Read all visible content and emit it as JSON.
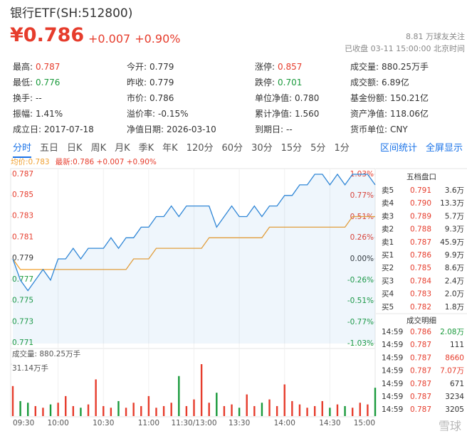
{
  "header": {
    "title": "银行ETF(SH:512800)",
    "price": "¥0.786",
    "change": "+0.007",
    "change_pct": "+0.90%",
    "followers": "8.81 万球友关注",
    "status": "已收盘 03-11 15:00:00 北京时间"
  },
  "stats": [
    [
      {
        "label": "最高:",
        "value": "0.787",
        "color": "#e63c2c"
      },
      {
        "label": "今开:",
        "value": "0.779",
        "color": "#333"
      },
      {
        "label": "涨停:",
        "value": "0.857",
        "color": "#e63c2c"
      },
      {
        "label": "成交量:",
        "value": "880.25万手",
        "color": "#333"
      }
    ],
    [
      {
        "label": "最低:",
        "value": "0.776",
        "color": "#1a9a3c"
      },
      {
        "label": "昨收:",
        "value": "0.779",
        "color": "#333"
      },
      {
        "label": "跌停:",
        "value": "0.701",
        "color": "#1a9a3c"
      },
      {
        "label": "成交额:",
        "value": "6.89亿",
        "color": "#333"
      }
    ],
    [
      {
        "label": "换手:",
        "value": "--",
        "color": "#333"
      },
      {
        "label": "市价:",
        "value": "0.786",
        "color": "#333"
      },
      {
        "label": "单位净值:",
        "value": "0.780",
        "color": "#333"
      },
      {
        "label": "基金份额:",
        "value": "150.21亿",
        "color": "#333"
      }
    ],
    [
      {
        "label": "振幅:",
        "value": "1.41%",
        "color": "#333"
      },
      {
        "label": "溢价率:",
        "value": "-0.15%",
        "color": "#333"
      },
      {
        "label": "累计净值:",
        "value": "1.560",
        "color": "#333"
      },
      {
        "label": "资产净值:",
        "value": "118.06亿",
        "color": "#333"
      }
    ],
    [
      {
        "label": "成立日:",
        "value": "2017-07-18",
        "color": "#333"
      },
      {
        "label": "净值日期:",
        "value": "2026-03-10",
        "color": "#333"
      },
      {
        "label": "到期日:",
        "value": "--",
        "color": "#333"
      },
      {
        "label": "货币单位:",
        "value": "CNY",
        "color": "#333"
      }
    ]
  ],
  "tabs": {
    "items": [
      "分时",
      "五日",
      "日K",
      "周K",
      "月K",
      "季K",
      "年K",
      "120分",
      "60分",
      "30分",
      "15分",
      "5分",
      "1分"
    ],
    "active": 0,
    "links": [
      "区间统计",
      "全屏显示"
    ]
  },
  "chart_data": [
    {
      "type": "line",
      "base": 0.779,
      "x": [
        0,
        5,
        10,
        15,
        20,
        25,
        30,
        35,
        40,
        45,
        50,
        55,
        60,
        65,
        70,
        75,
        80,
        85,
        90,
        95,
        100,
        105,
        110,
        115,
        120,
        125,
        130,
        135,
        140,
        145,
        150,
        155,
        160,
        165,
        170,
        175,
        180,
        185,
        190,
        195,
        200,
        205,
        210,
        215,
        220,
        225,
        230,
        235,
        240
      ],
      "series": [
        {
          "name": "均价:0.783",
          "color": "#f0a030",
          "legend_color": "#f0a030",
          "values": [
            0.779,
            0.778,
            0.778,
            0.778,
            0.778,
            0.778,
            0.778,
            0.778,
            0.778,
            0.778,
            0.778,
            0.778,
            0.778,
            0.778,
            0.778,
            0.778,
            0.779,
            0.779,
            0.779,
            0.78,
            0.78,
            0.78,
            0.78,
            0.78,
            0.78,
            0.78,
            0.781,
            0.781,
            0.781,
            0.781,
            0.781,
            0.781,
            0.781,
            0.781,
            0.782,
            0.782,
            0.782,
            0.782,
            0.782,
            0.782,
            0.782,
            0.782,
            0.782,
            0.782,
            0.782,
            0.783,
            0.783,
            0.783,
            0.783
          ]
        },
        {
          "name": "最新:0.786 +0.007 +0.90%",
          "color": "#2f86d6",
          "legend_color": "#e63c2c",
          "area": true,
          "values": [
            0.779,
            0.777,
            0.776,
            0.777,
            0.778,
            0.777,
            0.779,
            0.779,
            0.78,
            0.779,
            0.78,
            0.78,
            0.78,
            0.781,
            0.78,
            0.781,
            0.781,
            0.782,
            0.782,
            0.783,
            0.783,
            0.784,
            0.783,
            0.784,
            0.784,
            0.784,
            0.784,
            0.782,
            0.783,
            0.784,
            0.783,
            0.783,
            0.784,
            0.783,
            0.784,
            0.784,
            0.785,
            0.785,
            0.786,
            0.786,
            0.787,
            0.787,
            0.786,
            0.787,
            0.786,
            0.787,
            0.787,
            0.787,
            0.786
          ]
        }
      ],
      "xlim": [
        0,
        240
      ],
      "ylim": [
        0.771,
        0.787
      ],
      "yticks": [
        0.787,
        0.785,
        0.783,
        0.781,
        0.779,
        0.777,
        0.775,
        0.773,
        0.771
      ],
      "y2lim": [
        -1.03,
        1.03
      ],
      "y2ticks": [
        {
          "value": 1.03,
          "label": "1.03%"
        },
        {
          "value": 0.77,
          "label": "0.77%"
        },
        {
          "value": 0.51,
          "label": "0.51%"
        },
        {
          "value": 0.26,
          "label": "0.26%"
        },
        {
          "value": 0,
          "label": "0.00%"
        },
        {
          "value": -0.26,
          "label": "-0.26%"
        },
        {
          "value": -0.51,
          "label": "-0.51%"
        },
        {
          "value": -0.77,
          "label": "-0.77%"
        },
        {
          "value": -1.03,
          "label": "-1.03%"
        }
      ],
      "up_color": "#e63c2c",
      "down_color": "#1a9a3c",
      "flat_color": "#333333"
    },
    {
      "type": "bar",
      "title": "成交量: 880.25万手",
      "x": [
        0,
        5,
        10,
        15,
        20,
        25,
        30,
        35,
        40,
        45,
        50,
        55,
        60,
        65,
        70,
        75,
        80,
        85,
        90,
        95,
        100,
        105,
        110,
        115,
        120,
        125,
        130,
        135,
        140,
        145,
        150,
        155,
        160,
        165,
        170,
        175,
        180,
        185,
        190,
        195,
        200,
        205,
        210,
        215,
        220,
        225,
        230,
        235,
        240
      ],
      "values": [
        18,
        9,
        8,
        6,
        5,
        7,
        8,
        12,
        6,
        5,
        7,
        22,
        6,
        5,
        9,
        5,
        8,
        6,
        12,
        5,
        6,
        8,
        24,
        6,
        10,
        31.14,
        8,
        14,
        6,
        7,
        5,
        13,
        6,
        8,
        10,
        6,
        19,
        9,
        7,
        5,
        6,
        9,
        5,
        7,
        6,
        5,
        8,
        7,
        17
      ],
      "xlim": [
        0,
        240
      ],
      "ylim": [
        0,
        31.14
      ],
      "yticks": [
        {
          "value": 31.14,
          "label": "31.14万手"
        }
      ],
      "xticks": [
        {
          "value": 0,
          "label": "09:30"
        },
        {
          "value": 30,
          "label": "10:00"
        },
        {
          "value": 60,
          "label": "10:30"
        },
        {
          "value": 90,
          "label": "11:00"
        },
        {
          "value": 120,
          "label": "11:30/13:00"
        },
        {
          "value": 150,
          "label": "13:30"
        },
        {
          "value": 180,
          "label": "14:00"
        },
        {
          "value": 210,
          "label": "14:30"
        },
        {
          "value": 240,
          "label": "15:00"
        }
      ],
      "grid": true,
      "up_color": "#e63c2c",
      "down_color": "#1a9a3c"
    }
  ],
  "order_book": {
    "title": "五档盘口",
    "rows": [
      {
        "label": "卖5",
        "price": "0.791",
        "volume": "3.6万"
      },
      {
        "label": "卖4",
        "price": "0.790",
        "volume": "13.3万"
      },
      {
        "label": "卖3",
        "price": "0.789",
        "volume": "5.7万"
      },
      {
        "label": "卖2",
        "price": "0.788",
        "volume": "9.3万"
      },
      {
        "label": "卖1",
        "price": "0.787",
        "volume": "45.9万"
      },
      {
        "label": "买1",
        "price": "0.786",
        "volume": "9.9万"
      },
      {
        "label": "买2",
        "price": "0.785",
        "volume": "8.6万"
      },
      {
        "label": "买3",
        "price": "0.784",
        "volume": "2.4万"
      },
      {
        "label": "买4",
        "price": "0.783",
        "volume": "2.0万"
      },
      {
        "label": "买5",
        "price": "0.782",
        "volume": "1.8万"
      }
    ]
  },
  "trades": {
    "title": "成交明细",
    "rows": [
      {
        "time": "14:59",
        "price": "0.786",
        "volume": "2.08万",
        "color": "#1a9a3c"
      },
      {
        "time": "14:59",
        "price": "0.787",
        "volume": "111",
        "color": "#333"
      },
      {
        "time": "14:59",
        "price": "0.787",
        "volume": "8660",
        "color": "#e63c2c"
      },
      {
        "time": "14:59",
        "price": "0.787",
        "volume": "7.07万",
        "color": "#e63c2c"
      },
      {
        "time": "14:59",
        "price": "0.787",
        "volume": "671",
        "color": "#333"
      },
      {
        "time": "14:59",
        "price": "0.787",
        "volume": "3234",
        "color": "#333"
      },
      {
        "time": "14:59",
        "price": "0.787",
        "volume": "3205",
        "color": "#333"
      }
    ]
  },
  "watermark": "雪球"
}
